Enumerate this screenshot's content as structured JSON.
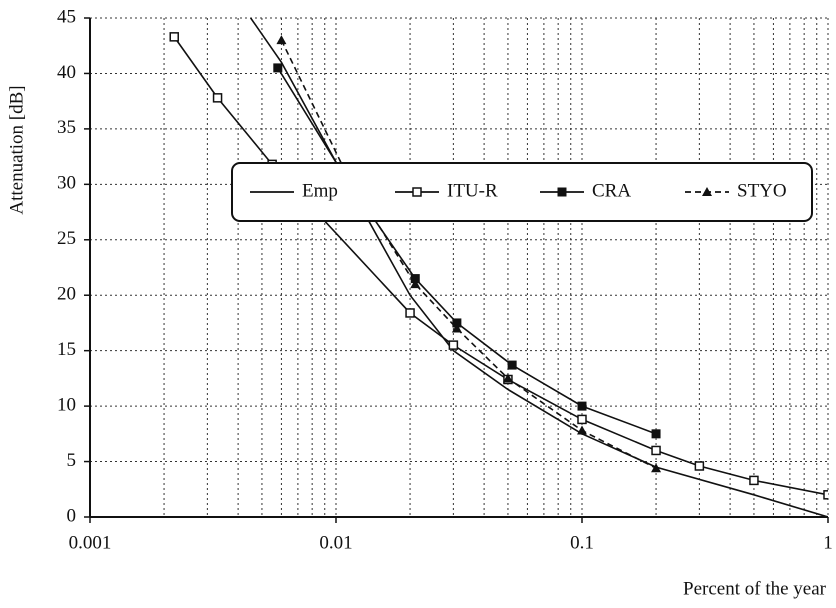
{
  "chart_data": {
    "type": "line",
    "xlabel": "Percent of the year",
    "ylabel": "Attenuation  [dB]",
    "xscale": "log",
    "xlim": [
      0.001,
      1
    ],
    "xticks": [
      0.001,
      0.01,
      0.1,
      1
    ],
    "ylim": [
      0,
      45
    ],
    "yticks": [
      0,
      5,
      10,
      15,
      20,
      25,
      30,
      35,
      40,
      45
    ],
    "grid": true,
    "legend": "center",
    "series": [
      {
        "name": "Emp",
        "color": "#111111",
        "marker": "none",
        "dash": false,
        "x": [
          0.0045,
          0.006,
          0.01,
          0.02,
          0.03,
          0.05,
          0.1,
          0.2,
          0.5,
          1
        ],
        "values": [
          45,
          41,
          32,
          20,
          15,
          11.5,
          7.5,
          4.5,
          2,
          0
        ]
      },
      {
        "name": "ITU-R",
        "color": "#111111",
        "marker": "square-open",
        "dash": false,
        "x": [
          0.0022,
          0.0033,
          0.0055,
          0.02,
          0.03,
          0.05,
          0.1,
          0.2,
          0.3,
          0.5,
          1
        ],
        "values": [
          43.3,
          37.8,
          31.8,
          18.4,
          15.5,
          12.4,
          8.8,
          6,
          4.6,
          3.3,
          2
        ]
      },
      {
        "name": "CRA",
        "color": "#111111",
        "marker": "square",
        "dash": false,
        "x": [
          0.0058,
          0.011,
          0.021,
          0.031,
          0.052,
          0.1,
          0.2
        ],
        "values": [
          40.5,
          30.5,
          21.5,
          17.5,
          13.7,
          10,
          7.5
        ]
      },
      {
        "name": "STYO",
        "color": "#111111",
        "marker": "triangle",
        "dash": true,
        "x": [
          0.006,
          0.011,
          0.021,
          0.031,
          0.05,
          0.1,
          0.2
        ],
        "values": [
          43,
          31,
          21,
          17,
          12.5,
          7.8,
          4.4
        ]
      }
    ]
  }
}
